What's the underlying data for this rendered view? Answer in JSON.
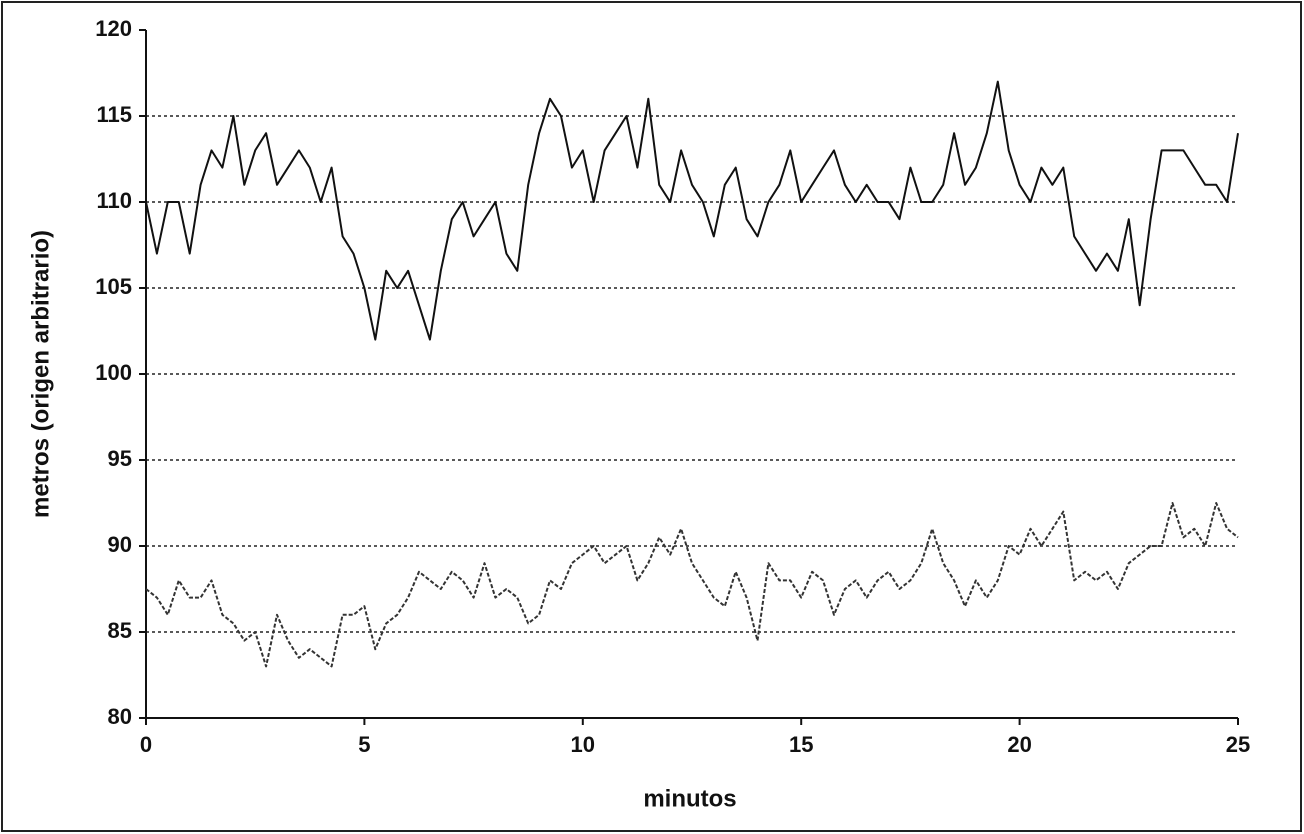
{
  "chart_data": {
    "type": "line",
    "x_label": "minutos",
    "y_label": "metros (origen arbitrario)",
    "x": [
      0,
      0.25,
      0.5,
      0.75,
      1,
      1.25,
      1.5,
      1.75,
      2,
      2.25,
      2.5,
      2.75,
      3,
      3.25,
      3.5,
      3.75,
      4,
      4.25,
      4.5,
      4.75,
      5,
      5.25,
      5.5,
      5.75,
      6,
      6.25,
      6.5,
      6.75,
      7,
      7.25,
      7.5,
      7.75,
      8,
      8.25,
      8.5,
      8.75,
      9,
      9.25,
      9.5,
      9.75,
      10,
      10.25,
      10.5,
      10.75,
      11,
      11.25,
      11.5,
      11.75,
      12,
      12.25,
      12.5,
      12.75,
      13,
      13.25,
      13.5,
      13.75,
      14,
      14.25,
      14.5,
      14.75,
      15,
      15.25,
      15.5,
      15.75,
      16,
      16.25,
      16.5,
      16.75,
      17,
      17.25,
      17.5,
      17.75,
      18,
      18.25,
      18.5,
      18.75,
      19,
      19.25,
      19.5,
      19.75,
      20,
      20.25,
      20.5,
      20.75,
      21,
      21.25,
      21.5,
      21.75,
      22,
      22.25,
      22.5,
      22.75,
      23,
      23.25,
      23.5,
      23.75,
      24,
      24.25,
      24.5,
      24.75,
      25
    ],
    "series": [
      {
        "color": "#111111",
        "style": "solid",
        "values": [
          110,
          107,
          110,
          110,
          107,
          111,
          113,
          112,
          115,
          111,
          113,
          114,
          111,
          112,
          113,
          112,
          110,
          112,
          108,
          107,
          105,
          102,
          106,
          105,
          106,
          104,
          102,
          106,
          109,
          110,
          108,
          109,
          110,
          107,
          106,
          111,
          114,
          116,
          115,
          112,
          113,
          110,
          113,
          114,
          115,
          112,
          116,
          111,
          110,
          113,
          111,
          110,
          108,
          111,
          112,
          109,
          108,
          110,
          111,
          113,
          110,
          111,
          112,
          113,
          111,
          110,
          111,
          110,
          110,
          109,
          112,
          110,
          110,
          111,
          114,
          111,
          112,
          114,
          117,
          113,
          111,
          110,
          112,
          111,
          112,
          108,
          107,
          106,
          107,
          106,
          109,
          104,
          109,
          113,
          113,
          113,
          112,
          111,
          111,
          110,
          114
        ]
      },
      {
        "color": "#333333",
        "style": "dashed",
        "values": [
          87.5,
          87,
          86,
          88,
          87,
          87,
          88,
          86,
          85.5,
          84.5,
          85,
          83,
          86,
          84.5,
          83.5,
          84,
          83.5,
          83,
          86,
          86,
          86.5,
          84,
          85.5,
          86,
          87,
          88.5,
          88,
          87.5,
          88.5,
          88,
          87,
          89,
          87,
          87.5,
          87,
          85.5,
          86,
          88,
          87.5,
          89,
          89.5,
          90,
          89,
          89.5,
          90,
          88,
          89,
          90.5,
          89.5,
          91,
          89,
          88,
          87,
          86.5,
          88.5,
          87,
          84.5,
          89,
          88,
          88,
          87,
          88.5,
          88,
          86,
          87.5,
          88,
          87,
          88,
          88.5,
          87.5,
          88,
          89,
          91,
          89,
          88,
          86.5,
          88,
          87,
          88,
          90,
          89.5,
          91,
          90,
          91,
          92,
          88,
          88.5,
          88,
          88.5,
          87.5,
          89,
          89.5,
          90,
          90,
          92.5,
          90.5,
          91,
          90,
          92.5,
          91,
          90.5
        ]
      }
    ],
    "xlim": [
      0,
      25
    ],
    "xticks": [
      0,
      5,
      10,
      15,
      20,
      25
    ],
    "ylim": [
      80,
      120
    ],
    "yticks": [
      80,
      85,
      90,
      95,
      100,
      105,
      110,
      115,
      120
    ],
    "grid": true
  }
}
